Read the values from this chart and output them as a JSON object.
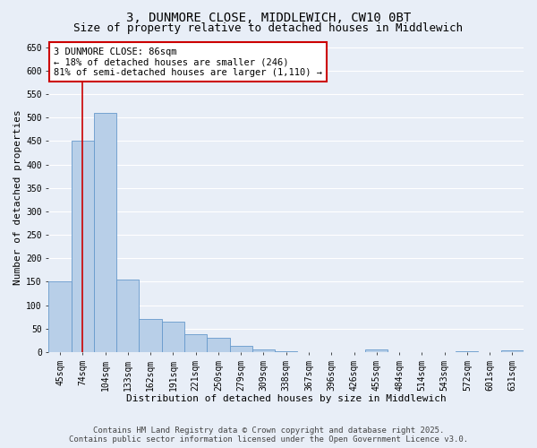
{
  "title_line1": "3, DUNMORE CLOSE, MIDDLEWICH, CW10 0BT",
  "title_line2": "Size of property relative to detached houses in Middlewich",
  "xlabel": "Distribution of detached houses by size in Middlewich",
  "ylabel": "Number of detached properties",
  "categories": [
    "45sqm",
    "74sqm",
    "104sqm",
    "133sqm",
    "162sqm",
    "191sqm",
    "221sqm",
    "250sqm",
    "279sqm",
    "309sqm",
    "338sqm",
    "367sqm",
    "396sqm",
    "426sqm",
    "455sqm",
    "484sqm",
    "514sqm",
    "543sqm",
    "572sqm",
    "601sqm",
    "631sqm"
  ],
  "values": [
    150,
    450,
    510,
    155,
    70,
    65,
    38,
    30,
    14,
    5,
    1,
    0,
    0,
    0,
    5,
    0,
    0,
    0,
    2,
    0,
    3
  ],
  "bar_color": "#b8cfe8",
  "bar_edgecolor": "#6699cc",
  "vline_x_index": 1,
  "vline_color": "#cc0000",
  "annotation_text": "3 DUNMORE CLOSE: 86sqm\n← 18% of detached houses are smaller (246)\n81% of semi-detached houses are larger (1,110) →",
  "annotation_box_color": "#cc0000",
  "ylim": [
    0,
    660
  ],
  "yticks": [
    0,
    50,
    100,
    150,
    200,
    250,
    300,
    350,
    400,
    450,
    500,
    550,
    600,
    650
  ],
  "background_color": "#e8eef7",
  "grid_color": "#ffffff",
  "footer_line1": "Contains HM Land Registry data © Crown copyright and database right 2025.",
  "footer_line2": "Contains public sector information licensed under the Open Government Licence v3.0.",
  "title_fontsize": 10,
  "subtitle_fontsize": 9,
  "axis_label_fontsize": 8,
  "tick_fontsize": 7,
  "annotation_fontsize": 7.5,
  "footer_fontsize": 6.5
}
